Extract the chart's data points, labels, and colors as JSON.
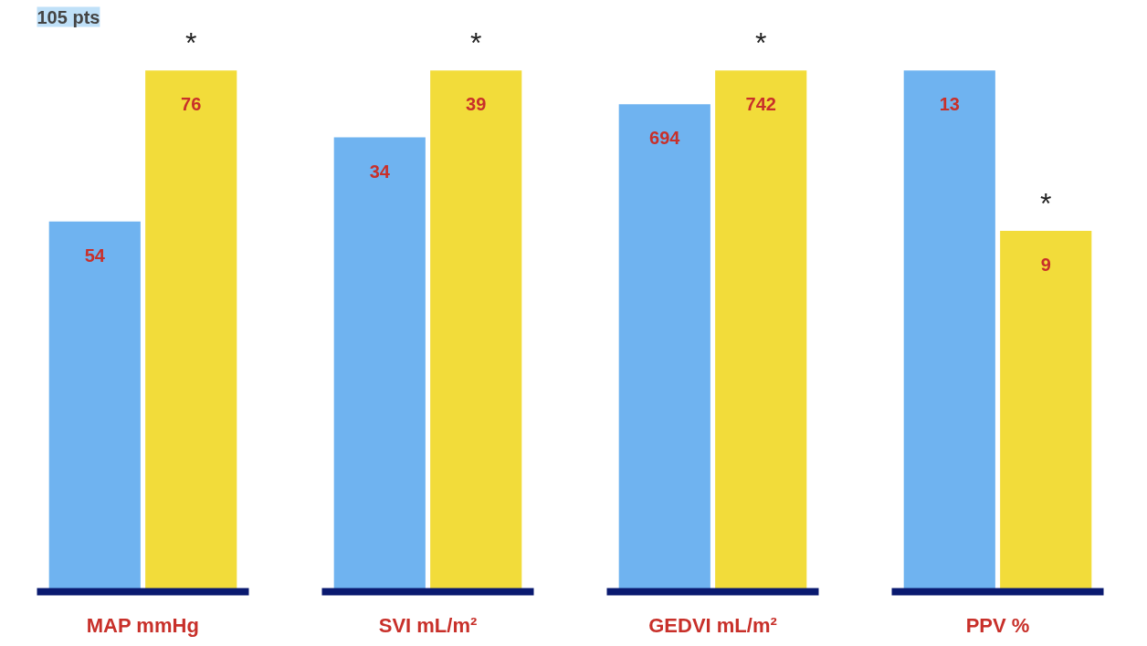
{
  "chart_data": [
    {
      "type": "bar",
      "title": "105 pts",
      "xlabel": "MAP mmHg",
      "categories": [
        null,
        null
      ],
      "values": [
        54,
        76
      ],
      "colors": [
        "#6fb3f0",
        "#f2dc3a"
      ],
      "data_labels": true,
      "tick_labels": false,
      "annotations": [
        "*"
      ]
    },
    {
      "type": "bar",
      "xlabel": "SVI mL/m²",
      "categories": [
        null,
        null
      ],
      "values": [
        34,
        39
      ],
      "colors": [
        "#6fb3f0",
        "#f2dc3a"
      ],
      "data_labels": true,
      "tick_labels": false,
      "annotations": [
        "*"
      ]
    },
    {
      "type": "bar",
      "xlabel": "GEDVI mL/m²",
      "categories": [
        null,
        null
      ],
      "values": [
        694,
        742
      ],
      "colors": [
        "#6fb3f0",
        "#f2dc3a"
      ],
      "data_labels": true,
      "tick_labels": false,
      "annotations": [
        "*"
      ]
    },
    {
      "type": "bar",
      "xlabel": "PPV %",
      "categories": [
        null,
        null
      ],
      "values": [
        13,
        9
      ],
      "colors": [
        "#6fb3f0",
        "#f2dc3a"
      ],
      "data_labels": true,
      "tick_labels": false,
      "annotations": [
        "*"
      ]
    }
  ]
}
